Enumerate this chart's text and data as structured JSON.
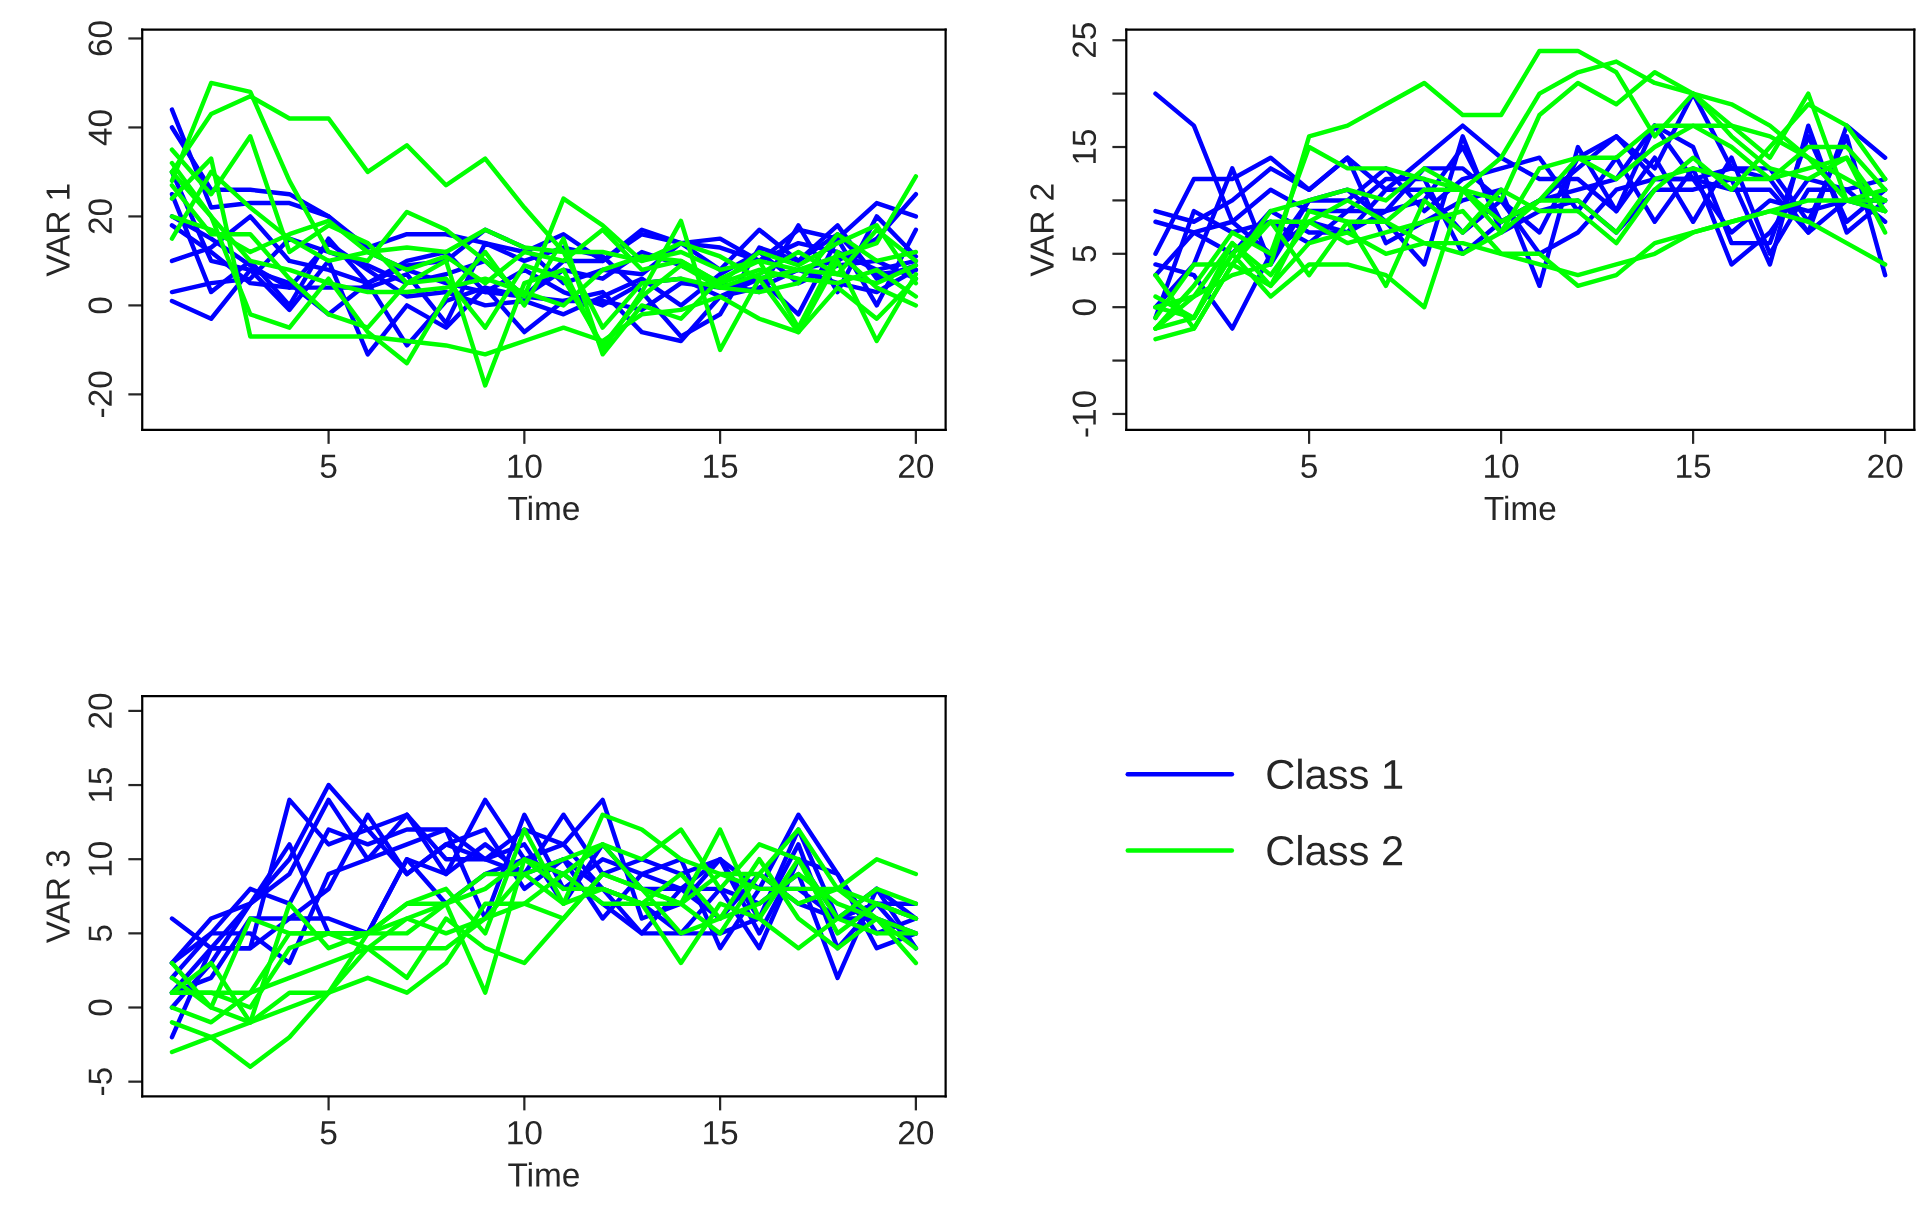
{
  "chart_data": [
    {
      "type": "line",
      "xlabel": "Time",
      "ylabel": "VAR 1",
      "x": [
        1,
        2,
        3,
        4,
        5,
        6,
        7,
        8,
        9,
        10,
        11,
        12,
        13,
        14,
        15,
        16,
        17,
        18,
        19,
        20
      ],
      "xlim": [
        0.24,
        20.76
      ],
      "xticks": [
        5,
        10,
        15,
        20
      ],
      "ylim": [
        -28,
        62
      ],
      "yticks": [
        -20,
        0,
        20,
        40,
        60
      ],
      "series": [
        {
          "color": "#0000ff",
          "values": [
            44,
            22,
            23,
            23,
            20,
            12,
            8,
            5,
            3,
            2,
            1,
            1,
            -1,
            5,
            4,
            6,
            8,
            10,
            15,
            25
          ]
        },
        {
          "color": "#0000ff",
          "values": [
            40,
            26,
            26,
            25,
            20,
            13,
            16,
            16,
            14,
            12,
            16,
            10,
            17,
            14,
            15,
            10,
            17,
            15,
            23,
            20
          ]
        },
        {
          "color": "#0000ff",
          "values": [
            25,
            3,
            10,
            0,
            15,
            5,
            9,
            10,
            17,
            13,
            5,
            8,
            7,
            14,
            8,
            17,
            10,
            18,
            6,
            9
          ]
        },
        {
          "color": "#0000ff",
          "values": [
            30,
            10,
            8,
            -1,
            10,
            -11,
            0,
            -5,
            4,
            -6,
            1,
            3,
            -6,
            -8,
            2,
            6,
            -2,
            15,
            0,
            17
          ]
        },
        {
          "color": "#0000ff",
          "values": [
            1,
            -3,
            8,
            5,
            -2,
            5,
            -9,
            1,
            4,
            2,
            10,
            10,
            16,
            14,
            13,
            10,
            14,
            12,
            8,
            10
          ]
        },
        {
          "color": "#0000ff",
          "values": [
            10,
            13,
            20,
            10,
            8,
            5,
            10,
            12,
            3,
            8,
            3,
            0,
            5,
            6,
            2,
            4,
            8,
            5,
            3,
            8
          ]
        },
        {
          "color": "#0000ff",
          "values": [
            3,
            5,
            6,
            15,
            12,
            9,
            5,
            7,
            10,
            2,
            8,
            6,
            12,
            9,
            5,
            3,
            18,
            3,
            20,
            11
          ]
        },
        {
          "color": "#0000ff",
          "values": [
            20,
            15,
            9,
            4,
            14,
            8,
            2,
            3,
            0,
            1,
            -2,
            2,
            6,
            0,
            7,
            12,
            5,
            9,
            10,
            6
          ]
        },
        {
          "color": "#0000ff",
          "values": [
            18,
            12,
            5,
            4,
            4,
            4,
            7,
            -4,
            14,
            10,
            13,
            11,
            3,
            -7,
            -2,
            13,
            10,
            16,
            7,
            8
          ]
        },
        {
          "color": "#00ff00",
          "values": [
            30,
            43,
            47,
            42,
            42,
            30,
            36,
            27,
            33,
            22,
            12,
            12,
            10,
            12,
            8,
            10,
            8,
            11,
            14,
            29
          ]
        },
        {
          "color": "#00ff00",
          "values": [
            28,
            50,
            48,
            28,
            12,
            10,
            21,
            17,
            10,
            2,
            24,
            18,
            10,
            14,
            11,
            6,
            8,
            7,
            17,
            10
          ]
        },
        {
          "color": "#00ff00",
          "values": [
            35,
            25,
            38,
            12,
            18,
            14,
            5,
            10,
            -18,
            5,
            8,
            -10,
            3,
            19,
            -10,
            6,
            -6,
            10,
            -8,
            7
          ]
        },
        {
          "color": "#00ff00",
          "values": [
            30,
            20,
            -2,
            -5,
            6,
            -6,
            -13,
            2,
            12,
            0,
            15,
            -11,
            0,
            -3,
            6,
            10,
            -5,
            12,
            4,
            0
          ]
        },
        {
          "color": "#00ff00",
          "values": [
            24,
            33,
            -7,
            -7,
            -7,
            -7,
            -8,
            -9,
            -11,
            -8,
            -5,
            -8,
            -2,
            -1,
            2,
            -3,
            -6,
            4,
            -3,
            6
          ]
        },
        {
          "color": "#00ff00",
          "values": [
            15,
            30,
            22,
            15,
            10,
            12,
            8,
            11,
            5,
            12,
            10,
            17,
            8,
            10,
            5,
            12,
            9,
            14,
            18,
            5
          ]
        },
        {
          "color": "#00ff00",
          "values": [
            20,
            17,
            12,
            16,
            19,
            12,
            13,
            12,
            17,
            13,
            12,
            -5,
            5,
            6,
            4,
            7,
            12,
            7,
            5,
            9
          ]
        },
        {
          "color": "#00ff00",
          "values": [
            27,
            16,
            16,
            6,
            -2,
            -5,
            5,
            6,
            -5,
            9,
            6,
            -9,
            2,
            9,
            4,
            3,
            5,
            16,
            10,
            12
          ]
        },
        {
          "color": "#00ff00",
          "values": [
            32,
            20,
            10,
            8,
            5,
            3,
            3,
            4,
            6,
            3,
            0,
            8,
            11,
            10,
            5,
            8,
            6,
            5,
            8,
            2
          ]
        }
      ]
    },
    {
      "type": "line",
      "xlabel": "Time",
      "ylabel": "VAR 2",
      "x": [
        1,
        2,
        3,
        4,
        5,
        6,
        7,
        8,
        9,
        10,
        11,
        12,
        13,
        14,
        15,
        16,
        17,
        18,
        19,
        20
      ],
      "xlim": [
        0.24,
        20.76
      ],
      "xticks": [
        5,
        10,
        15,
        20
      ],
      "ylim": [
        -11.5,
        26
      ],
      "yticks": [
        -10,
        {
          "value": -5,
          "label": null
        },
        0,
        5,
        {
          "value": 10,
          "label": null
        },
        15,
        {
          "value": 20,
          "label": null
        },
        25
      ],
      "series": [
        {
          "color": "#0000ff",
          "values": [
            20,
            17,
            8,
            5,
            8,
            7,
            9,
            10,
            15,
            8,
            10,
            13,
            16,
            13,
            20,
            13,
            12,
            7,
            17,
            14
          ]
        },
        {
          "color": "#0000ff",
          "values": [
            9,
            8,
            10,
            13,
            11,
            14,
            11,
            14,
            17,
            14,
            12,
            12,
            9,
            17,
            12,
            13,
            13,
            8,
            16,
            3
          ]
        },
        {
          "color": "#0000ff",
          "values": [
            5,
            12,
            12,
            14,
            11,
            14,
            6,
            8,
            10,
            11,
            2,
            15,
            9,
            14,
            8,
            14,
            5,
            11,
            11,
            12
          ]
        },
        {
          "color": "#0000ff",
          "values": [
            0,
            4,
            13,
            4,
            10,
            10,
            13,
            9,
            12,
            13,
            14,
            9,
            14,
            8,
            13,
            4,
            7,
            12,
            11,
            8
          ]
        },
        {
          "color": "#0000ff",
          "values": [
            4,
            3,
            -2,
            5,
            10,
            11,
            8,
            4,
            16,
            7,
            9,
            10,
            7,
            11,
            11,
            12,
            4,
            17,
            7,
            10
          ]
        },
        {
          "color": "#0000ff",
          "values": [
            3,
            7,
            5,
            9,
            7,
            7,
            11,
            11,
            7,
            10,
            5,
            7,
            11,
            12,
            12,
            7,
            10,
            9,
            10,
            9
          ]
        },
        {
          "color": "#0000ff",
          "values": [
            8,
            7,
            8,
            11,
            9,
            9,
            9,
            13,
            13,
            10,
            7,
            14,
            16,
            12,
            12,
            11,
            11,
            7,
            10,
            10
          ]
        },
        {
          "color": "#0000ff",
          "values": [
            -1,
            9,
            7,
            8,
            6,
            9,
            12,
            12,
            5,
            8,
            10,
            11,
            12,
            17,
            15,
            6,
            6,
            16,
            8,
            11
          ]
        },
        {
          "color": "#00ff00",
          "values": [
            0,
            1,
            3,
            4,
            16,
            17,
            19,
            21,
            18,
            18,
            24,
            24,
            22,
            16,
            20,
            19,
            17,
            14,
            12,
            10
          ]
        },
        {
          "color": "#00ff00",
          "values": [
            -3,
            -2,
            4,
            9,
            10,
            11,
            10,
            13,
            11,
            14,
            20,
            22,
            23,
            21,
            20,
            16,
            13,
            12,
            14,
            9
          ]
        },
        {
          "color": "#00ff00",
          "values": [
            -2,
            2,
            7,
            5,
            15,
            13,
            13,
            12,
            11,
            10,
            18,
            21,
            19,
            22,
            20,
            17,
            14,
            20,
            10,
            10
          ]
        },
        {
          "color": "#00ff00",
          "values": [
            1,
            -1,
            5,
            1,
            4,
            4,
            3,
            0,
            11,
            7,
            13,
            14,
            12,
            15,
            17,
            17,
            16,
            14,
            10,
            11
          ]
        },
        {
          "color": "#00ff00",
          "values": [
            -1,
            4,
            4,
            2,
            6,
            7,
            5,
            6,
            5,
            7,
            10,
            10,
            7,
            12,
            13,
            12,
            12,
            13,
            14,
            7
          ]
        },
        {
          "color": "#00ff00",
          "values": [
            -2,
            1,
            6,
            3,
            8,
            6,
            7,
            8,
            9,
            5,
            4,
            3,
            4,
            5,
            7,
            8,
            9,
            10,
            10,
            9
          ]
        },
        {
          "color": "#00ff00",
          "values": [
            0,
            -1,
            5,
            8,
            8,
            10,
            8,
            6,
            6,
            5,
            5,
            2,
            3,
            6,
            7,
            8,
            9,
            8,
            6,
            4
          ]
        },
        {
          "color": "#00ff00",
          "values": [
            3,
            -2,
            4,
            8,
            3,
            8,
            2,
            10,
            7,
            11,
            9,
            9,
            6,
            11,
            14,
            11,
            15,
            19,
            17,
            12
          ]
        },
        {
          "color": "#00ff00",
          "values": [
            -2,
            -1,
            6,
            2,
            9,
            8,
            8,
            11,
            11,
            8,
            10,
            14,
            14,
            17,
            17,
            15,
            12,
            15,
            15,
            11
          ]
        }
      ]
    },
    {
      "type": "line",
      "xlabel": "Time",
      "ylabel": "VAR 3",
      "x": [
        1,
        2,
        3,
        4,
        5,
        6,
        7,
        8,
        9,
        10,
        11,
        12,
        13,
        14,
        15,
        16,
        17,
        18,
        19,
        20
      ],
      "xlim": [
        0.24,
        20.76
      ],
      "xticks": [
        5,
        10,
        15,
        20
      ],
      "ylim": [
        -6,
        21
      ],
      "yticks": [
        -5,
        0,
        5,
        10,
        15,
        20
      ],
      "legend": "right",
      "series": [
        {
          "name": "Class 1",
          "color": "#0000ff",
          "values": [
            6,
            4,
            4,
            14,
            11,
            12,
            9,
            11,
            10,
            12,
            11,
            8,
            5,
            5,
            8,
            7,
            9,
            2,
            8,
            6
          ]
        },
        {
          "color": "#0000ff",
          "values": [
            3,
            6,
            7,
            10,
            15,
            12,
            13,
            9,
            14,
            10,
            11,
            14,
            6,
            7,
            10,
            8,
            13,
            9,
            5,
            6
          ]
        },
        {
          "color": "#0000ff",
          "values": [
            2,
            5,
            8,
            7,
            12,
            11,
            12,
            12,
            10,
            9,
            13,
            9,
            10,
            9,
            10,
            5,
            10,
            6,
            6,
            5
          ]
        },
        {
          "color": "#0000ff",
          "values": [
            -2,
            4,
            7,
            11,
            5,
            5,
            10,
            9,
            11,
            9,
            10,
            6,
            9,
            10,
            4,
            8,
            8,
            6,
            7,
            6
          ]
        },
        {
          "color": "#0000ff",
          "values": [
            1,
            4,
            4,
            6,
            8,
            13,
            9,
            11,
            12,
            8,
            10,
            8,
            7,
            5,
            5,
            6,
            12,
            6,
            8,
            4
          ]
        },
        {
          "color": "#0000ff",
          "values": [
            1,
            2,
            6,
            6,
            6,
            5,
            10,
            7,
            9,
            10,
            9,
            7,
            5,
            8,
            8,
            4,
            10,
            9,
            4,
            5
          ]
        },
        {
          "color": "#0000ff",
          "values": [
            3,
            5,
            5,
            3,
            9,
            10,
            13,
            10,
            10,
            11,
            7,
            11,
            8,
            8,
            6,
            9,
            7,
            6,
            7,
            4
          ]
        },
        {
          "color": "#0000ff",
          "values": [
            0,
            3,
            7,
            9,
            14,
            10,
            11,
            12,
            6,
            13,
            8,
            10,
            9,
            8,
            10,
            6,
            11,
            4,
            7,
            7
          ]
        },
        {
          "name": "Class 2",
          "color": "#00ff00",
          "values": [
            3,
            0,
            -1,
            7,
            4,
            5,
            7,
            8,
            5,
            12,
            7,
            13,
            12,
            10,
            9,
            9,
            12,
            8,
            10,
            9
          ]
        },
        {
          "color": "#00ff00",
          "values": [
            1,
            1,
            0,
            4,
            5,
            5,
            6,
            7,
            9,
            9,
            10,
            11,
            10,
            12,
            8,
            11,
            10,
            6,
            8,
            7
          ]
        },
        {
          "color": "#00ff00",
          "values": [
            -3,
            -2,
            -4,
            -2,
            1,
            5,
            5,
            7,
            8,
            10,
            8,
            8,
            7,
            3,
            7,
            6,
            4,
            6,
            5,
            5
          ]
        },
        {
          "color": "#00ff00",
          "values": [
            1,
            1,
            1,
            2,
            3,
            4,
            2,
            6,
            4,
            3,
            6,
            9,
            8,
            5,
            6,
            7,
            9,
            7,
            6,
            3
          ]
        },
        {
          "color": "#00ff00",
          "values": [
            0,
            -1,
            1,
            5,
            5,
            5,
            7,
            7,
            1,
            10,
            9,
            11,
            8,
            7,
            5,
            9,
            7,
            8,
            7,
            6
          ]
        },
        {
          "color": "#00ff00",
          "values": [
            1,
            3,
            -1,
            1,
            1,
            2,
            1,
            3,
            7,
            7,
            6,
            9,
            8,
            7,
            12,
            6,
            10,
            5,
            7,
            6
          ]
        },
        {
          "color": "#00ff00",
          "values": [
            2,
            0,
            6,
            5,
            5,
            4,
            4,
            4,
            6,
            7,
            9,
            7,
            7,
            9,
            6,
            10,
            6,
            4,
            6,
            4
          ]
        },
        {
          "color": "#00ff00",
          "values": [
            -1,
            -2,
            -1,
            0,
            1,
            4,
            6,
            5,
            6,
            9,
            7,
            8,
            7,
            7,
            9,
            8,
            8,
            8,
            6,
            5
          ]
        }
      ]
    }
  ]
}
